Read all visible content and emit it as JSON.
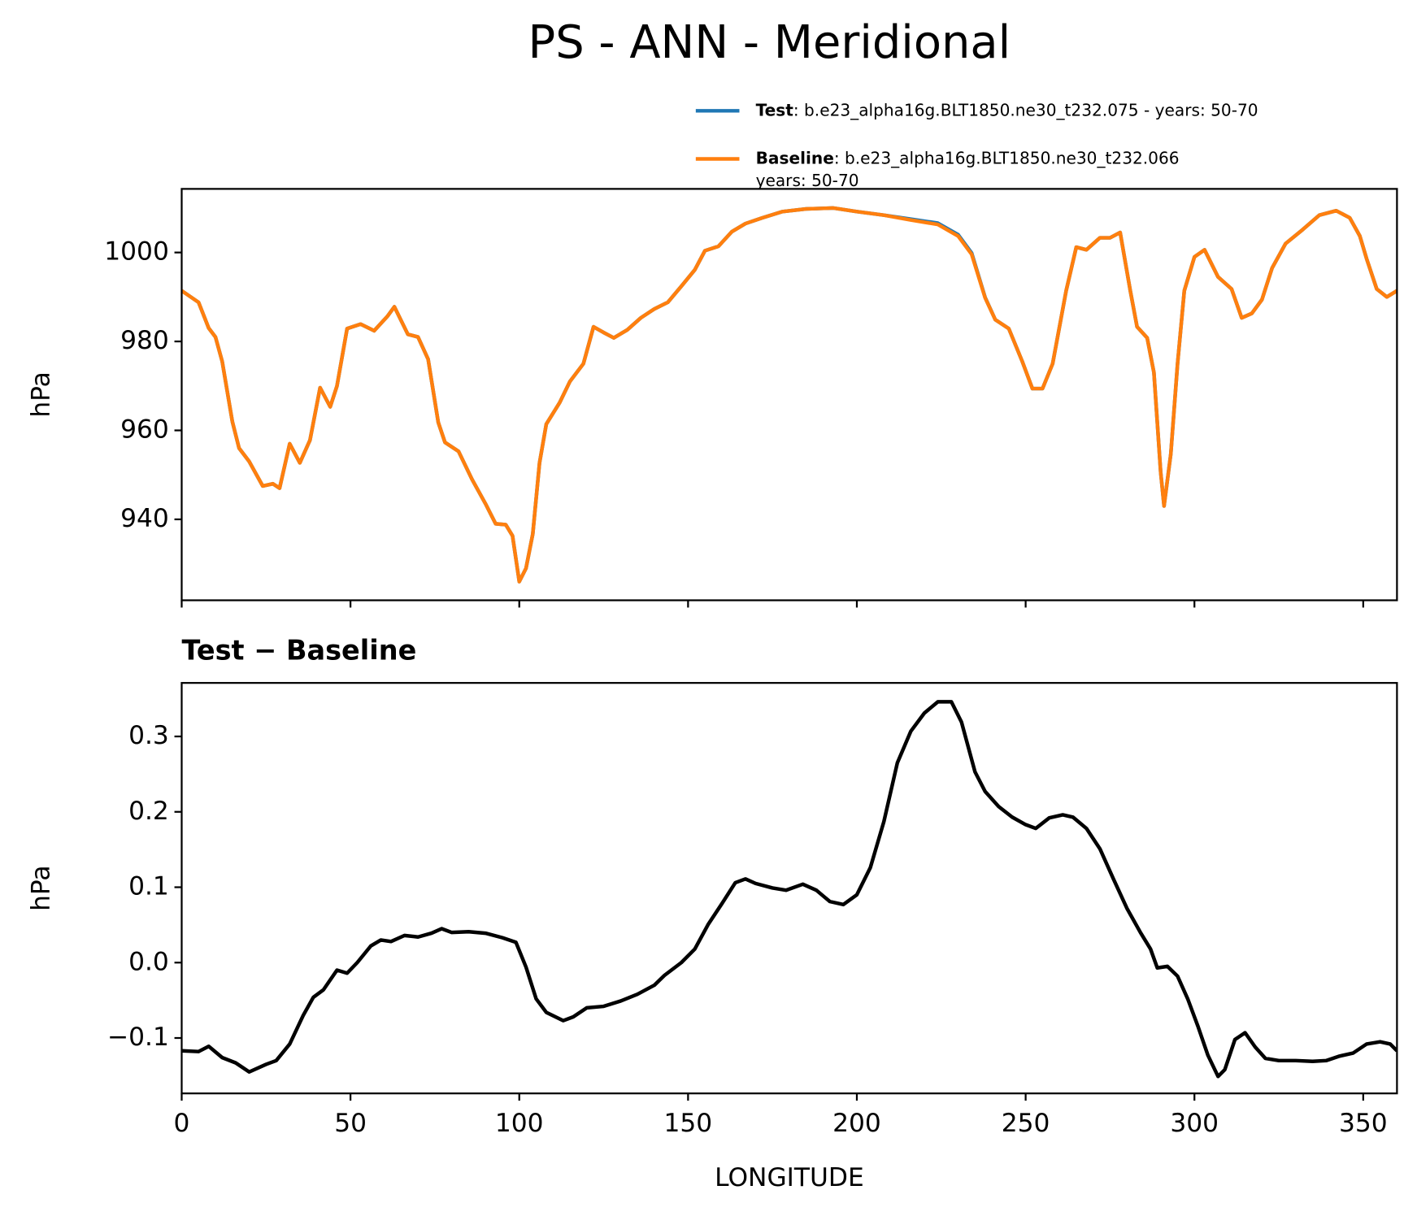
{
  "title": "PS - ANN - Meridional",
  "chart_data": [
    {
      "type": "line",
      "x": [
        0,
        5,
        8,
        10,
        12,
        15,
        17,
        20,
        24,
        27,
        29,
        32,
        35,
        38,
        41,
        44,
        46,
        49,
        53,
        57,
        61,
        63,
        67,
        70,
        73,
        76,
        78,
        82,
        86,
        90,
        93,
        96,
        98,
        100,
        102,
        104,
        106,
        108,
        112,
        115,
        119,
        122,
        125,
        128,
        132,
        136,
        140,
        144,
        148,
        152,
        155,
        159,
        163,
        167,
        172,
        178,
        185,
        193,
        200,
        208,
        216,
        224,
        230,
        234,
        238,
        241,
        245,
        249,
        252,
        255,
        258,
        262,
        265,
        268,
        272,
        275,
        278,
        281,
        283,
        286,
        288,
        290,
        291,
        293,
        295,
        297,
        300,
        303,
        307,
        311,
        314,
        317,
        320,
        323,
        327,
        332,
        337,
        342,
        346,
        349,
        351,
        354,
        357,
        360
      ],
      "series": [
        {
          "name": "Test",
          "description": ": b.e23_alpha16g.BLT1850.ne30_t232.075 - years: 50-70",
          "color": "#1f77b4",
          "values": [
            991.4,
            988.8,
            983,
            981,
            975.5,
            962,
            956,
            953,
            947.5,
            948,
            947,
            957,
            952.7,
            957.8,
            969.6,
            965.3,
            970,
            982.9,
            983.9,
            982.4,
            985.7,
            987.8,
            981.6,
            981,
            976,
            961.8,
            957.3,
            955.3,
            949,
            943.5,
            939,
            938.8,
            936.3,
            926,
            929,
            936.7,
            952.7,
            961.4,
            966.3,
            971,
            975,
            983.3,
            982,
            980.8,
            982.6,
            985.3,
            987.3,
            988.8,
            992.4,
            996.1,
            1000.4,
            1001.4,
            1004.7,
            1006.5,
            1007.8,
            1009.2,
            1009.8,
            1010,
            1009.2,
            1008.4,
            1007.5,
            1006.6,
            1004.0,
            999.9,
            989.9,
            984.9,
            982.9,
            975.5,
            969.4,
            969.4,
            975,
            991.4,
            1001.2,
            1000.6,
            1003.3,
            1003.3,
            1004.5,
            991.4,
            983.3,
            980.8,
            973,
            950.6,
            943,
            954.7,
            975,
            991.4,
            999,
            1000.6,
            994.5,
            991.8,
            985.3,
            986.3,
            989.4,
            996.5,
            1002,
            1005.1,
            1008.4,
            1009.4,
            1007.8,
            1003.7,
            998.6,
            991.8,
            990,
            991.4
          ]
        },
        {
          "name": "Baseline",
          "description": [
            ": b.e23_alpha16g.BLT1850.ne30_t232.066",
            "years: 50-70"
          ],
          "color": "#ff7f0e",
          "values": [
            991.4,
            988.8,
            983,
            981,
            975.5,
            962,
            956,
            953,
            947.5,
            948,
            947,
            957,
            952.7,
            957.8,
            969.6,
            965.3,
            970,
            982.9,
            983.9,
            982.4,
            985.7,
            987.8,
            981.6,
            981,
            976,
            961.8,
            957.3,
            955.3,
            949,
            943.5,
            939,
            938.8,
            936.3,
            926,
            929,
            936.7,
            952.7,
            961.4,
            966.3,
            971,
            975,
            983.3,
            982,
            980.8,
            982.6,
            985.3,
            987.3,
            988.8,
            992.4,
            996.1,
            1000.4,
            1001.4,
            1004.7,
            1006.5,
            1007.8,
            1009.2,
            1009.8,
            1010,
            1009.2,
            1008.4,
            1007.3,
            1006.3,
            1003.7,
            999.6,
            989.8,
            984.9,
            982.9,
            975.5,
            969.4,
            969.4,
            975,
            991.4,
            1001.2,
            1000.6,
            1003.3,
            1003.3,
            1004.5,
            991.4,
            983.3,
            980.8,
            973,
            950.6,
            943,
            954.7,
            975,
            991.4,
            999,
            1000.6,
            994.5,
            991.8,
            985.3,
            986.3,
            989.4,
            996.5,
            1002,
            1005.1,
            1008.4,
            1009.4,
            1007.8,
            1003.7,
            998.6,
            991.8,
            990,
            991.4
          ]
        }
      ],
      "ylabel": "hPa",
      "xlim": [
        0,
        360
      ],
      "xticks": [
        0,
        50,
        100,
        150,
        200,
        250,
        300,
        350
      ],
      "xtick_labels": false,
      "ylim": [
        921.8,
        1014.3
      ],
      "yticks": [
        940,
        960,
        980,
        1000
      ]
    },
    {
      "type": "line",
      "title": "Test − Baseline",
      "x": [
        0,
        5,
        8,
        12,
        16,
        20,
        25,
        28,
        32,
        36,
        39,
        42,
        46,
        49,
        52,
        56,
        59,
        62,
        66,
        70,
        74,
        77,
        80,
        85,
        90,
        95,
        99,
        102,
        105,
        108,
        113,
        116,
        120,
        125,
        130,
        135,
        140,
        143,
        148,
        152,
        156,
        160,
        164,
        167,
        170,
        175,
        179,
        184,
        188,
        192,
        196,
        200,
        204,
        208,
        212,
        216,
        220,
        224,
        228,
        231,
        235,
        238,
        242,
        246,
        250,
        253,
        257,
        261,
        264,
        268,
        272,
        276,
        280,
        284,
        287,
        289,
        292,
        295,
        298,
        301,
        304,
        307,
        309,
        312,
        315,
        318,
        321,
        325,
        330,
        335,
        339,
        343,
        347,
        351,
        355,
        358,
        360
      ],
      "series": [
        {
          "name": "Test − Baseline",
          "color": "#000000",
          "values": [
            -0.117,
            -0.118,
            -0.111,
            -0.126,
            -0.133,
            -0.145,
            -0.135,
            -0.13,
            -0.108,
            -0.07,
            -0.046,
            -0.036,
            -0.01,
            -0.014,
            0,
            0.022,
            0.03,
            0.028,
            0.036,
            0.034,
            0.039,
            0.045,
            0.04,
            0.041,
            0.039,
            0.033,
            0.027,
            -0.006,
            -0.048,
            -0.066,
            -0.077,
            -0.072,
            -0.06,
            -0.058,
            -0.051,
            -0.042,
            -0.03,
            -0.017,
            0,
            0.018,
            0.051,
            0.078,
            0.106,
            0.111,
            0.105,
            0.099,
            0.096,
            0.104,
            0.096,
            0.081,
            0.077,
            0.09,
            0.126,
            0.187,
            0.265,
            0.307,
            0.331,
            0.346,
            0.346,
            0.319,
            0.253,
            0.227,
            0.207,
            0.193,
            0.183,
            0.178,
            0.192,
            0.196,
            0.193,
            0.178,
            0.151,
            0.111,
            0.072,
            0.04,
            0.018,
            -0.007,
            -0.005,
            -0.018,
            -0.048,
            -0.084,
            -0.123,
            -0.151,
            -0.142,
            -0.102,
            -0.093,
            -0.112,
            -0.127,
            -0.13,
            -0.13,
            -0.131,
            -0.13,
            -0.124,
            -0.12,
            -0.108,
            -0.105,
            -0.108,
            -0.117
          ]
        }
      ],
      "xlabel": "LONGITUDE",
      "ylabel": "hPa",
      "xlim": [
        0,
        360
      ],
      "xticks": [
        0,
        50,
        100,
        150,
        200,
        250,
        300,
        350
      ],
      "xtick_labels": true,
      "ylim": [
        -0.1735,
        0.371
      ],
      "yticks": [
        {
          "value": -0.1,
          "label": "−0.1"
        },
        {
          "value": 0,
          "label": "0.0"
        },
        0.1,
        0.2,
        0.3
      ]
    }
  ]
}
